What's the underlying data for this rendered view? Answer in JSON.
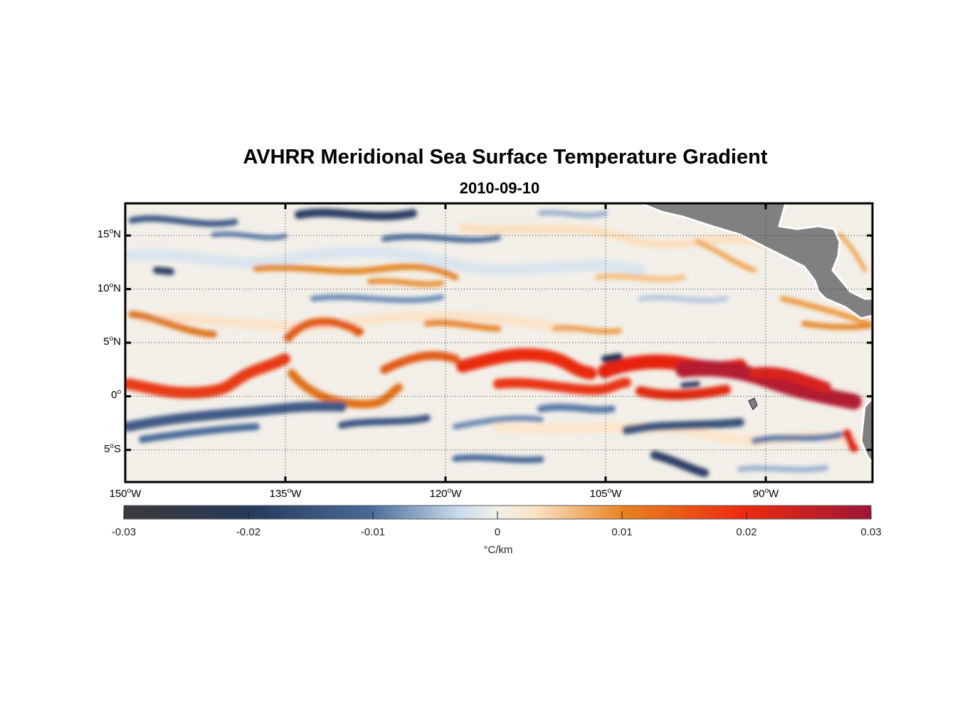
{
  "title": "AVHRR Meridional Sea Surface Temperature Gradient",
  "subtitle": "2010-09-10",
  "map": {
    "region": "Eastern Tropical Pacific",
    "lon_range": [
      -150,
      -80
    ],
    "lat_range": [
      -8,
      18
    ],
    "grid": "dotted",
    "land_color": "#808080",
    "lat_ticks": [
      {
        "value": 15,
        "num": "15",
        "hemi": "N"
      },
      {
        "value": 10,
        "num": "10",
        "hemi": "N"
      },
      {
        "value": 5,
        "num": "5",
        "hemi": "N"
      },
      {
        "value": 0,
        "num": "0",
        "hemi": ""
      },
      {
        "value": -5,
        "num": "5",
        "hemi": "S"
      }
    ],
    "lon_ticks": [
      {
        "value": -150,
        "num": "150",
        "hemi": "W"
      },
      {
        "value": -135,
        "num": "135",
        "hemi": "W"
      },
      {
        "value": -120,
        "num": "120",
        "hemi": "W"
      },
      {
        "value": -105,
        "num": "105",
        "hemi": "W"
      },
      {
        "value": -90,
        "num": "90",
        "hemi": "W"
      }
    ],
    "degree_symbol": "o"
  },
  "colorbar": {
    "min": -0.03,
    "max": 0.03,
    "ticks": [
      "-0.03",
      "-0.02",
      "-0.01",
      "0",
      "0.01",
      "0.02",
      "0.03"
    ],
    "unit": "°C/km",
    "colors": [
      "#3a3a3a",
      "#263a5c",
      "#4a6a9a",
      "#c9dcee",
      "#f0efe6",
      "#fbe3c6",
      "#e8821e",
      "#ee2a10",
      "#9e1535"
    ]
  }
}
